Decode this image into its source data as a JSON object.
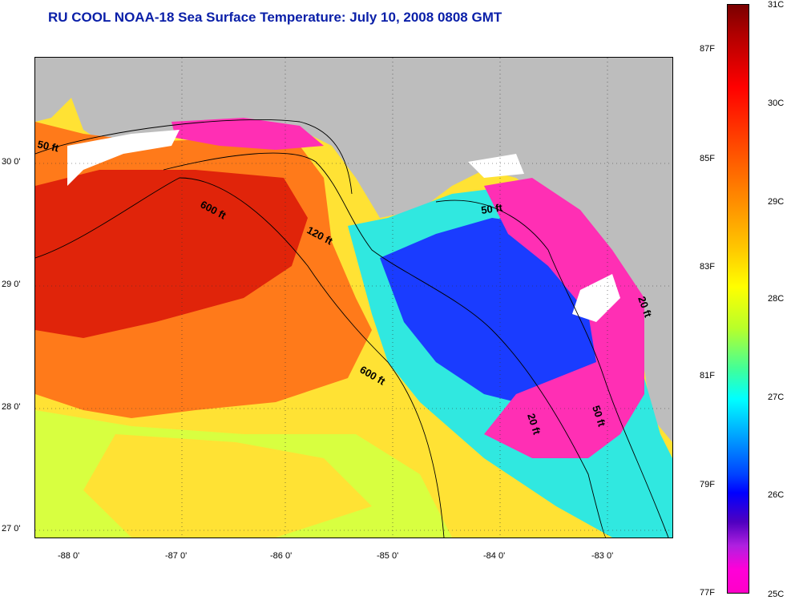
{
  "title": "RU COOL  NOAA-18  Sea Surface Temperature:  July 10, 2008 0808 GMT",
  "map": {
    "lat_ticks": [
      "30 0'",
      "29 0'",
      "28 0'",
      "27 0'"
    ],
    "lon_ticks": [
      "-88 0'",
      "-87 0'",
      "-86 0'",
      "-85 0'",
      "-84 0'",
      "-83 0'"
    ],
    "contours": [
      "50 ft",
      "600 ft",
      "120 ft",
      "600 ft",
      "50 ft",
      "20 ft",
      "50 ft",
      "20 ft"
    ],
    "colors": {
      "land": "#bdbdbd",
      "cloud": "#ffffff",
      "warm_core": "#e0240a",
      "warm": "#ff7a1a",
      "mid": "#ffd21a",
      "cool": "#b8ff3a",
      "cyan": "#30e8e0",
      "blue": "#1a3cff",
      "magenta": "#ff2fb4"
    }
  },
  "colorbar": {
    "fahrenheit": [
      "87F",
      "85F",
      "83F",
      "81F",
      "79F",
      "77F"
    ],
    "celsius": [
      "31C",
      "30C",
      "29C",
      "28C",
      "27C",
      "26C",
      "25C"
    ]
  }
}
